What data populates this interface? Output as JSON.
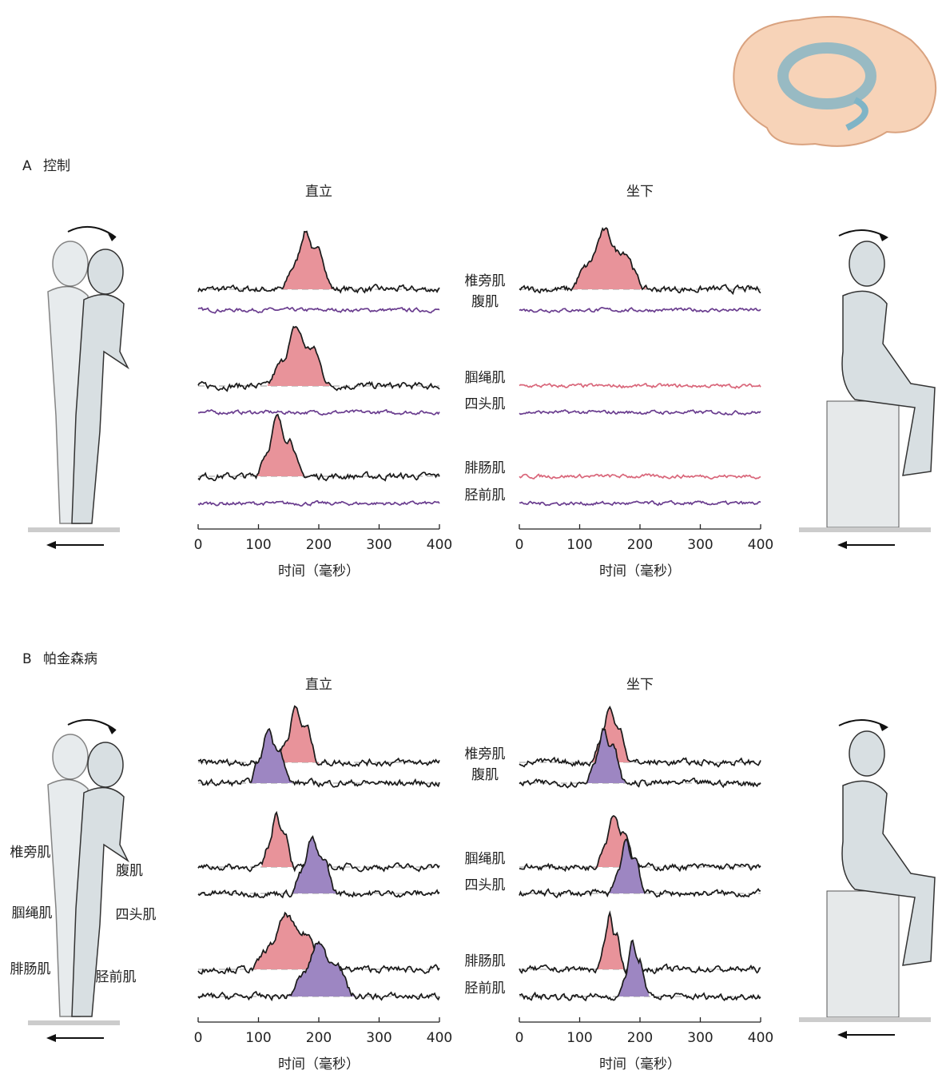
{
  "muscles": [
    "椎旁肌",
    "腹肌",
    "腘绳肌",
    "四头肌",
    "腓肠肌",
    "胫前肌"
  ],
  "panels": [
    {
      "label": "A",
      "title": "控制",
      "charts": [
        {
          "title": "直立",
          "xlim": [
            0,
            400
          ],
          "xticks": [
            0,
            100,
            200,
            300,
            400
          ],
          "xlabel": "时间（毫秒）",
          "traces": [
            {
              "burst": [
                140,
                225
              ],
              "fill": "#e8939a",
              "line": "#1a1a1a"
            },
            {
              "burst": null,
              "line": "#6a3d8f"
            },
            {
              "burst": [
                115,
                220
              ],
              "fill": "#e8939a",
              "line": "#1a1a1a"
            },
            {
              "burst": null,
              "line": "#6a3d8f"
            },
            {
              "burst": [
                95,
                175
              ],
              "fill": "#e8939a",
              "line": "#1a1a1a"
            },
            {
              "burst": null,
              "line": "#6a3d8f"
            }
          ]
        },
        {
          "title": "坐下",
          "xlim": [
            0,
            400
          ],
          "xticks": [
            0,
            100,
            200,
            300,
            400
          ],
          "xlabel": "时间（毫秒）",
          "traces": [
            {
              "burst": [
                85,
                210
              ],
              "fill": "#e8939a",
              "line": "#1a1a1a"
            },
            {
              "burst": null,
              "line": "#6a3d8f"
            },
            {
              "burst": null,
              "line": "#d9667a"
            },
            {
              "burst": null,
              "line": "#6a3d8f"
            },
            {
              "burst": null,
              "line": "#d9667a"
            },
            {
              "burst": null,
              "line": "#6a3d8f"
            }
          ]
        }
      ]
    },
    {
      "label": "B",
      "title": "帕金森病",
      "charts": [
        {
          "title": "直立",
          "xlim": [
            0,
            400
          ],
          "xticks": [
            0,
            100,
            200,
            300,
            400
          ],
          "xlabel": "时间（毫秒）",
          "traces": [
            {
              "burst": [
                130,
                200
              ],
              "fill": "#e8939a",
              "line": "#1a1a1a"
            },
            {
              "burst": [
                85,
                155
              ],
              "fill": "#9d86c2",
              "line": "#1a1a1a"
            },
            {
              "burst": [
                105,
                160
              ],
              "fill": "#e8939a",
              "line": "#1a1a1a"
            },
            {
              "burst": [
                155,
                230
              ],
              "fill": "#9d86c2",
              "line": "#1a1a1a"
            },
            {
              "burst": [
                90,
                215
              ],
              "fill": "#e8939a",
              "line": "#1a1a1a"
            },
            {
              "burst": [
                150,
                260
              ],
              "fill": "#9d86c2",
              "line": "#1a1a1a"
            }
          ]
        },
        {
          "title": "坐下",
          "xlim": [
            0,
            400
          ],
          "xticks": [
            0,
            100,
            200,
            300,
            400
          ],
          "xlabel": "时间（毫秒）",
          "traces": [
            {
              "burst": [
                120,
                185
              ],
              "fill": "#e8939a",
              "line": "#1a1a1a"
            },
            {
              "burst": [
                110,
                175
              ],
              "fill": "#9d86c2",
              "line": "#1a1a1a"
            },
            {
              "burst": [
                125,
                195
              ],
              "fill": "#e8939a",
              "line": "#1a1a1a"
            },
            {
              "burst": [
                150,
                210
              ],
              "fill": "#9d86c2",
              "line": "#1a1a1a"
            },
            {
              "burst": [
                130,
                175
              ],
              "fill": "#e8939a",
              "line": "#1a1a1a"
            },
            {
              "burst": [
                165,
                215
              ],
              "fill": "#9d86c2",
              "line": "#1a1a1a"
            }
          ]
        }
      ]
    }
  ]
}
